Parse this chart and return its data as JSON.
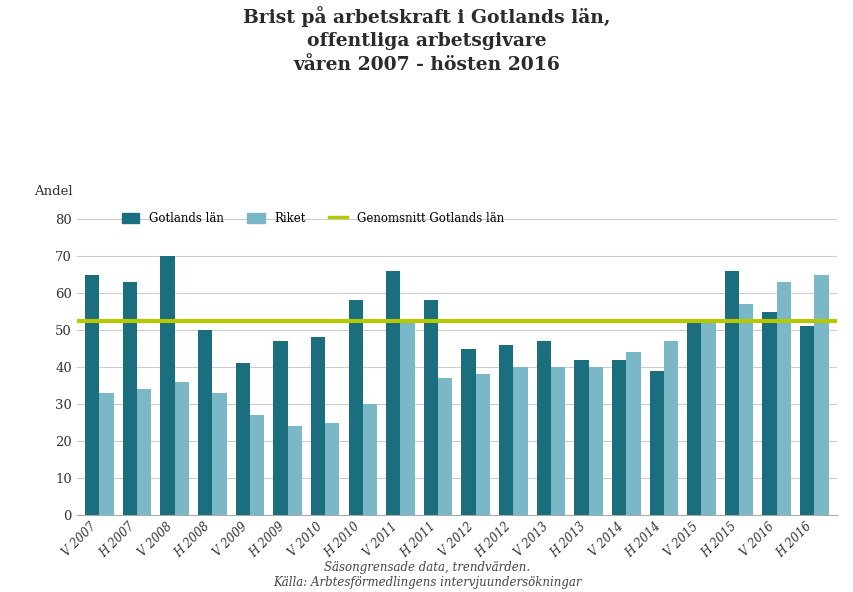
{
  "title": "Brist på arbetskraft i Gotlands län,\noffentliga arbetsgivare\nvåren 2007 - hösten 2016",
  "ylabel": "Andel",
  "categories": [
    "V 2007",
    "H 2007",
    "V 2008",
    "H 2008",
    "V 2009",
    "H 2009",
    "V 2010",
    "H 2010",
    "V 2011",
    "H 2011",
    "V 2012",
    "H 2012",
    "V 2013",
    "H 2013",
    "V 2014",
    "H 2014",
    "V 2015",
    "H 2015",
    "V 2016",
    "H 2016"
  ],
  "gotland": [
    65,
    63,
    70,
    50,
    41,
    47,
    48,
    58,
    66,
    58,
    45,
    46,
    47,
    42,
    42,
    39,
    53,
    66,
    55,
    51
  ],
  "riket": [
    33,
    34,
    36,
    33,
    27,
    24,
    25,
    30,
    52,
    37,
    38,
    40,
    40,
    40,
    44,
    47,
    52,
    57,
    63,
    65
  ],
  "average_line": 52.5,
  "color_gotland": "#1a6e7e",
  "color_riket": "#7ab8c8",
  "color_average": "#b5c800",
  "ylim": [
    0,
    80
  ],
  "yticks": [
    0,
    10,
    20,
    30,
    40,
    50,
    60,
    70,
    80
  ],
  "background_color": "#ffffff",
  "grid_color": "#cccccc",
  "title_color": "#2b2b2b",
  "footer": "Säsongrensade data, trendvärden.\nKälla: Arbtesförmedlingens intervjuundersökningar",
  "legend_gotland": "Gotlands län",
  "legend_riket": "Riket",
  "legend_average": "Genomsnitt Gotlands län"
}
